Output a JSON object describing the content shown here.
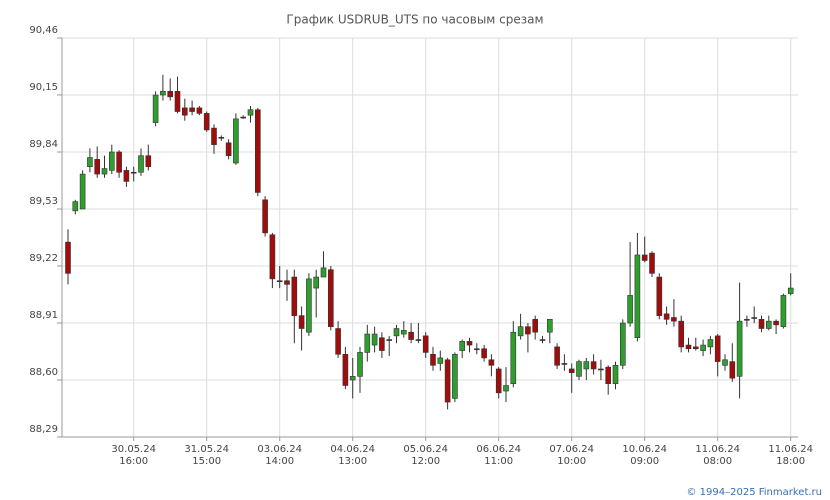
{
  "chart_data": {
    "type": "candlestick",
    "title": "График USDRUB_UTS по часовым срезам",
    "categories": [
      null,
      null,
      null,
      null,
      null,
      null,
      null,
      null,
      null,
      [
        "30.05.24",
        "16:00"
      ],
      null,
      null,
      null,
      null,
      null,
      null,
      null,
      null,
      null,
      [
        "31.05.24",
        "15:00"
      ],
      null,
      null,
      null,
      null,
      null,
      null,
      null,
      null,
      null,
      [
        "03.06.24",
        "14:00"
      ],
      null,
      null,
      null,
      null,
      null,
      null,
      null,
      null,
      null,
      [
        "04.06.24",
        "13:00"
      ],
      null,
      null,
      null,
      null,
      null,
      null,
      null,
      null,
      null,
      [
        "05.06.24",
        "12:00"
      ],
      null,
      null,
      null,
      null,
      null,
      null,
      null,
      null,
      null,
      [
        "06.06.24",
        "11:00"
      ],
      null,
      null,
      null,
      null,
      null,
      null,
      null,
      null,
      null,
      [
        "07.06.24",
        "10:00"
      ],
      null,
      null,
      null,
      null,
      null,
      null,
      null,
      null,
      null,
      [
        "10.06.24",
        "09:00"
      ],
      null,
      null,
      null,
      null,
      null,
      null,
      null,
      null,
      null,
      [
        "11.06.24",
        "08:00"
      ],
      null,
      null,
      null,
      null,
      null,
      null,
      null,
      null,
      null,
      [
        "11.06.24",
        "18:00"
      ]
    ],
    "open": [
      89.35,
      89.52,
      89.53,
      89.76,
      89.8,
      89.72,
      89.74,
      89.84,
      89.74,
      89.73,
      89.73,
      89.82,
      90.0,
      90.15,
      90.17,
      90.17,
      90.08,
      90.08,
      90.08,
      90.05,
      89.97,
      89.92,
      89.89,
      89.78,
      90.03,
      90.04,
      90.07,
      89.58,
      89.39,
      89.14,
      89.14,
      89.16,
      88.95,
      88.86,
      89.1,
      89.16,
      89.2,
      88.88,
      88.74,
      88.6,
      88.62,
      88.75,
      88.79,
      88.83,
      88.82,
      88.84,
      88.85,
      88.86,
      88.82,
      88.84,
      88.74,
      88.69,
      88.71,
      88.5,
      88.76,
      88.81,
      88.77,
      88.77,
      88.71,
      88.66,
      88.54,
      88.58,
      88.84,
      88.89,
      88.93,
      88.82,
      88.86,
      88.78,
      88.69,
      88.66,
      88.62,
      88.66,
      88.7,
      88.66,
      88.67,
      88.58,
      88.68,
      88.91,
      88.83,
      89.28,
      89.29,
      89.16,
      88.96,
      88.94,
      88.92,
      88.79,
      88.78,
      88.76,
      88.78,
      88.84,
      88.68,
      88.7,
      88.62,
      88.93,
      88.94,
      88.93,
      88.88,
      88.92,
      88.89,
      89.07
    ],
    "high": [
      89.42,
      89.58,
      89.74,
      89.86,
      89.87,
      89.82,
      89.88,
      89.85,
      89.76,
      89.76,
      89.86,
      89.88,
      90.17,
      90.26,
      90.24,
      90.25,
      90.13,
      90.12,
      90.09,
      90.06,
      89.99,
      89.93,
      89.91,
      90.05,
      90.04,
      90.09,
      90.08,
      89.6,
      89.4,
      89.22,
      89.2,
      89.2,
      89.0,
      89.18,
      89.2,
      89.3,
      89.22,
      88.92,
      88.78,
      88.72,
      88.78,
      88.9,
      88.89,
      88.86,
      88.84,
      88.9,
      88.92,
      88.91,
      88.91,
      88.86,
      88.78,
      88.76,
      88.72,
      88.75,
      88.82,
      88.83,
      88.8,
      88.79,
      88.74,
      88.67,
      88.67,
      88.92,
      88.96,
      88.91,
      88.95,
      88.84,
      88.93,
      88.8,
      88.74,
      88.69,
      88.71,
      88.72,
      88.74,
      88.71,
      88.68,
      88.7,
      88.93,
      89.35,
      89.4,
      89.38,
      89.3,
      89.18,
      89.0,
      89.04,
      88.95,
      88.83,
      88.83,
      88.82,
      88.84,
      88.85,
      88.74,
      88.8,
      89.13,
      88.95,
      89.0,
      88.95,
      88.95,
      88.93,
      89.07,
      89.18
    ],
    "low": [
      89.12,
      89.5,
      89.53,
      89.73,
      89.7,
      89.7,
      89.72,
      89.7,
      89.65,
      89.68,
      89.71,
      89.74,
      89.98,
      90.12,
      90.12,
      90.05,
      90.01,
      90.04,
      90.04,
      89.95,
      89.83,
      89.9,
      89.8,
      89.77,
      90.02,
      90.0,
      89.6,
      89.38,
      89.1,
      89.1,
      89.03,
      88.8,
      88.76,
      88.84,
      88.94,
      89.16,
      88.87,
      88.72,
      88.55,
      88.5,
      88.53,
      88.7,
      88.75,
      88.72,
      88.73,
      88.8,
      88.83,
      88.8,
      88.8,
      88.72,
      88.65,
      88.65,
      88.44,
      88.48,
      88.72,
      88.75,
      88.74,
      88.7,
      88.62,
      88.5,
      88.48,
      88.56,
      88.82,
      88.75,
      88.82,
      88.8,
      88.8,
      88.66,
      88.65,
      88.53,
      88.6,
      88.6,
      88.63,
      88.6,
      88.52,
      88.55,
      88.66,
      88.89,
      88.81,
      89.24,
      89.16,
      88.93,
      88.9,
      88.89,
      88.75,
      88.75,
      88.76,
      88.73,
      88.74,
      88.62,
      88.65,
      88.59,
      88.5,
      88.89,
      88.91,
      88.86,
      88.87,
      88.85,
      88.88,
      89.06
    ],
    "close": [
      89.18,
      89.57,
      89.72,
      89.81,
      89.72,
      89.75,
      89.84,
      89.73,
      89.68,
      89.73,
      89.82,
      89.76,
      90.15,
      90.17,
      90.14,
      90.06,
      90.04,
      90.06,
      90.05,
      89.96,
      89.88,
      89.92,
      89.82,
      90.02,
      90.03,
      90.07,
      89.62,
      89.4,
      89.15,
      89.14,
      89.12,
      88.95,
      88.88,
      89.15,
      89.16,
      89.21,
      88.89,
      88.74,
      88.57,
      88.62,
      88.75,
      88.85,
      88.85,
      88.76,
      88.82,
      88.88,
      88.87,
      88.82,
      88.82,
      88.75,
      88.68,
      88.72,
      88.48,
      88.74,
      88.81,
      88.79,
      88.77,
      88.72,
      88.68,
      88.53,
      88.57,
      88.86,
      88.89,
      88.85,
      88.86,
      88.82,
      88.93,
      88.68,
      88.69,
      88.64,
      88.7,
      88.7,
      88.66,
      88.66,
      88.58,
      88.68,
      88.91,
      89.06,
      89.28,
      89.25,
      89.18,
      88.95,
      88.93,
      88.92,
      88.78,
      88.77,
      88.77,
      88.79,
      88.82,
      88.7,
      88.71,
      88.61,
      88.92,
      88.93,
      88.94,
      88.88,
      88.92,
      88.9,
      89.06,
      89.1
    ],
    "up_color": "#2e9e2e",
    "down_color": "#a00d0d",
    "flat_color": "#333333",
    "ylim": [
      88.29,
      90.46
    ],
    "yticks": [
      {
        "value": 88.29,
        "label": "88,29"
      },
      {
        "value": 88.6,
        "label": "88,60"
      },
      {
        "value": 88.91,
        "label": "88,91"
      },
      {
        "value": 89.22,
        "label": "89,22"
      },
      {
        "value": 89.53,
        "label": "89,53"
      },
      {
        "value": 89.84,
        "label": "89,84"
      },
      {
        "value": 90.15,
        "label": "90,15"
      },
      {
        "value": 90.46,
        "label": "90,46"
      }
    ],
    "grid": true
  },
  "footer": "© 1994–2025 Finmarket.ru"
}
